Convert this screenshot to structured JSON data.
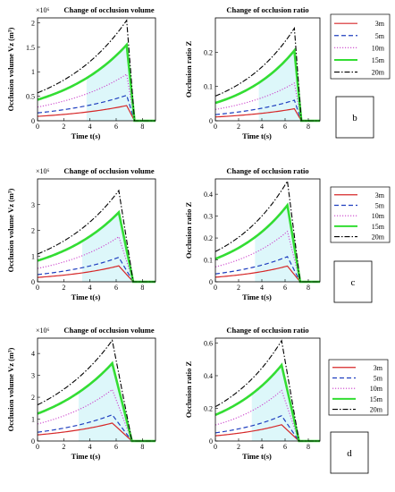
{
  "legend_entries": [
    "3m",
    "5m",
    "10m",
    "15m",
    "20m"
  ],
  "colors": {
    "3m": "#d62728",
    "5m": "#1f3fbf",
    "10m": "#cc44cc",
    "15m": "#33dd33",
    "20m": "#000000",
    "fill_15m": "#c7f2f7",
    "axis": "#000000"
  },
  "rows": [
    {
      "panel_label": "b"
    },
    {
      "panel_label": "c"
    },
    {
      "panel_label": "d"
    }
  ],
  "chart_data": [
    {
      "type": "line",
      "title": "Change of occlusion volume",
      "ylabel": "Occlusion volume Vz (m³)",
      "xlabel": "Time t(s)",
      "exponent_label": "×10⁶",
      "xlim": [
        0,
        9
      ],
      "ylim": [
        0,
        2.1
      ],
      "xticks": [
        0,
        2,
        4,
        6,
        8
      ],
      "yticks": [
        0,
        0.5,
        1,
        1.5,
        2
      ],
      "peak_x": 6.8,
      "end_x": 7.4,
      "series": [
        {
          "name": "3m",
          "start": 0.09,
          "peak": 0.31
        },
        {
          "name": "5m",
          "start": 0.16,
          "peak": 0.52
        },
        {
          "name": "10m",
          "start": 0.28,
          "peak": 0.95
        },
        {
          "name": "15m",
          "start": 0.43,
          "peak": 1.55
        },
        {
          "name": "20m",
          "start": 0.57,
          "peak": 2.05
        }
      ]
    },
    {
      "type": "line",
      "title": "Change of occlusion ratio",
      "ylabel": "Occlusion ratio Z",
      "xlabel": "Time t(s)",
      "xlim": [
        0,
        9
      ],
      "ylim": [
        0,
        0.3
      ],
      "xticks": [
        0,
        2,
        4,
        6,
        8
      ],
      "yticks": [
        0,
        0.1,
        0.2
      ],
      "peak_x": 6.8,
      "end_x": 7.4,
      "series": [
        {
          "name": "3m",
          "start": 0.011,
          "peak": 0.035
        },
        {
          "name": "5m",
          "start": 0.018,
          "peak": 0.06
        },
        {
          "name": "10m",
          "start": 0.033,
          "peak": 0.11
        },
        {
          "name": "15m",
          "start": 0.052,
          "peak": 0.205
        },
        {
          "name": "20m",
          "start": 0.072,
          "peak": 0.27
        }
      ]
    },
    {
      "type": "line",
      "title": "Change of occlusion volume",
      "ylabel": "Occlusion volume Vz (m³)",
      "xlabel": "Time t(s)",
      "exponent_label": "×10⁶",
      "xlim": [
        0,
        9
      ],
      "ylim": [
        0,
        4
      ],
      "xticks": [
        0,
        2,
        4,
        6,
        8
      ],
      "yticks": [
        0,
        1,
        2,
        3
      ],
      "peak_x": 6.2,
      "end_x": 7.3,
      "series": [
        {
          "name": "3m",
          "start": 0.17,
          "peak": 0.62
        },
        {
          "name": "5m",
          "start": 0.28,
          "peak": 0.95
        },
        {
          "name": "10m",
          "start": 0.52,
          "peak": 1.75
        },
        {
          "name": "15m",
          "start": 0.82,
          "peak": 2.7
        },
        {
          "name": "20m",
          "start": 1.08,
          "peak": 3.55
        }
      ]
    },
    {
      "type": "line",
      "title": "Change of occlusion ratio",
      "ylabel": "Occlusion ratio Z",
      "xlabel": "Time t(s)",
      "xlim": [
        0,
        9
      ],
      "ylim": [
        0,
        0.47
      ],
      "xticks": [
        0,
        2,
        4,
        6,
        8
      ],
      "yticks": [
        0,
        0.1,
        0.2,
        0.3,
        0.4
      ],
      "peak_x": 6.2,
      "end_x": 7.3,
      "series": [
        {
          "name": "3m",
          "start": 0.021,
          "peak": 0.072
        },
        {
          "name": "5m",
          "start": 0.036,
          "peak": 0.115
        },
        {
          "name": "10m",
          "start": 0.068,
          "peak": 0.23
        },
        {
          "name": "15m",
          "start": 0.105,
          "peak": 0.35
        },
        {
          "name": "20m",
          "start": 0.138,
          "peak": 0.46
        }
      ]
    },
    {
      "type": "line",
      "title": "Change of occlusion volume",
      "ylabel": "Occlusion volume Vz (m³)",
      "xlabel": "Time t(s)",
      "exponent_label": "×10⁶",
      "xlim": [
        0,
        9
      ],
      "ylim": [
        0,
        4.7
      ],
      "xticks": [
        0,
        2,
        4,
        6,
        8
      ],
      "yticks": [
        0,
        1,
        2,
        3,
        4
      ],
      "peak_x": 5.7,
      "end_x": 7.2,
      "series": [
        {
          "name": "3m",
          "start": 0.28,
          "peak": 0.82
        },
        {
          "name": "5m",
          "start": 0.4,
          "peak": 1.2
        },
        {
          "name": "10m",
          "start": 0.78,
          "peak": 2.35
        },
        {
          "name": "15m",
          "start": 1.25,
          "peak": 3.55
        },
        {
          "name": "20m",
          "start": 1.65,
          "peak": 4.6
        }
      ]
    },
    {
      "type": "line",
      "title": "Change of occlusion ratio",
      "ylabel": "Occlusion ratio Z",
      "xlabel": "Time t(s)",
      "xlim": [
        0,
        9
      ],
      "ylim": [
        0,
        0.63
      ],
      "xticks": [
        0,
        2,
        4,
        6,
        8
      ],
      "yticks": [
        0,
        0.2,
        0.4,
        0.6
      ],
      "peak_x": 5.7,
      "end_x": 7.2,
      "series": [
        {
          "name": "3m",
          "start": 0.032,
          "peak": 0.1
        },
        {
          "name": "5m",
          "start": 0.05,
          "peak": 0.155
        },
        {
          "name": "10m",
          "start": 0.098,
          "peak": 0.31
        },
        {
          "name": "15m",
          "start": 0.16,
          "peak": 0.465
        },
        {
          "name": "20m",
          "start": 0.21,
          "peak": 0.615
        }
      ]
    }
  ]
}
